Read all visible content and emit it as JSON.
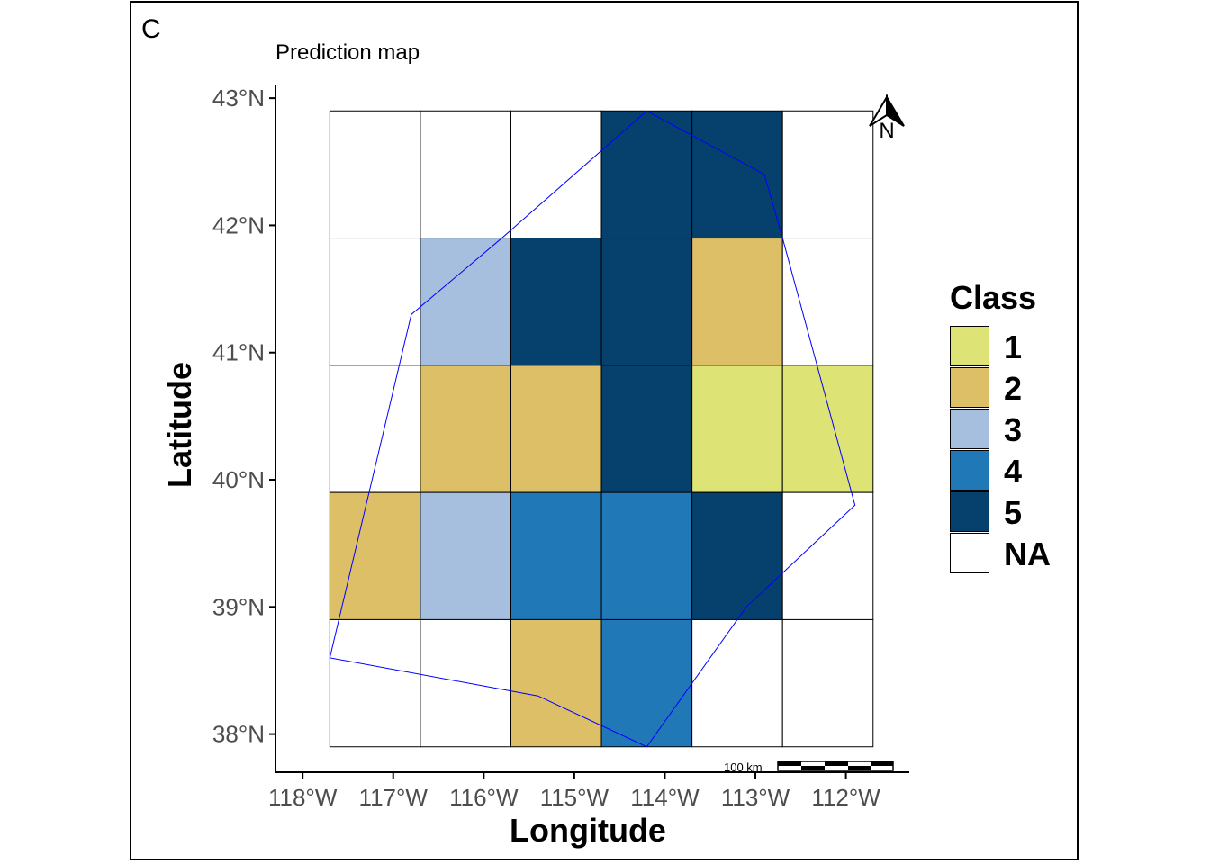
{
  "panel_letter": "C",
  "title": "Prediction map",
  "xlabel": "Longitude",
  "ylabel": "Latitude",
  "north_arrow_label": "N",
  "scalebar_label": "100 km",
  "legend": {
    "title": "Class",
    "items": [
      {
        "label": "1",
        "color": "#dde374"
      },
      {
        "label": "2",
        "color": "#ddbf68"
      },
      {
        "label": "3",
        "color": "#a6bfde"
      },
      {
        "label": "4",
        "color": "#2178b6"
      },
      {
        "label": "5",
        "color": "#06416e"
      },
      {
        "label": "NA",
        "color": "#ffffff"
      }
    ]
  },
  "chart_data": {
    "type": "heatmap",
    "x_ticks": [
      {
        "value": -118,
        "label": "118°W"
      },
      {
        "value": -117,
        "label": "117°W"
      },
      {
        "value": -116,
        "label": "116°W"
      },
      {
        "value": -115,
        "label": "115°W"
      },
      {
        "value": -114,
        "label": "114°W"
      },
      {
        "value": -113,
        "label": "113°W"
      },
      {
        "value": -112,
        "label": "112°W"
      }
    ],
    "y_ticks": [
      {
        "value": 38,
        "label": "38°N"
      },
      {
        "value": 39,
        "label": "39°N"
      },
      {
        "value": 40,
        "label": "40°N"
      },
      {
        "value": 41,
        "label": "41°N"
      },
      {
        "value": 42,
        "label": "42°N"
      },
      {
        "value": 43,
        "label": "43°N"
      }
    ],
    "xlim": [
      -118.3,
      -111.3
    ],
    "ylim": [
      37.7,
      43.1
    ],
    "grid_lon_edges": [
      -117.7,
      -116.7,
      -115.7,
      -114.7,
      -113.7,
      -112.7,
      -111.7
    ],
    "grid_lat_edges": [
      42.9,
      41.9,
      40.9,
      39.9,
      38.9,
      37.9
    ],
    "cells": [
      [
        "NA",
        "NA",
        "NA",
        "5",
        "5",
        "NA"
      ],
      [
        "NA",
        "3",
        "5",
        "5",
        "2",
        "NA"
      ],
      [
        "NA",
        "2",
        "2",
        "5",
        "1",
        "1"
      ],
      [
        "2",
        "3",
        "4",
        "4",
        "5",
        "NA"
      ],
      [
        "NA",
        "NA",
        "2",
        "4",
        "NA",
        "NA"
      ]
    ],
    "boundary": [
      [
        -114.2,
        42.9
      ],
      [
        -112.9,
        42.4
      ],
      [
        -112.7,
        41.9
      ],
      [
        -111.9,
        39.8
      ],
      [
        -113.1,
        39.0
      ],
      [
        -114.2,
        37.9
      ],
      [
        -115.4,
        38.3
      ],
      [
        -117.7,
        38.6
      ],
      [
        -116.8,
        41.3
      ],
      [
        -115.8,
        41.9
      ],
      [
        -114.2,
        42.9
      ]
    ],
    "boundary_color": "#0000ff"
  }
}
